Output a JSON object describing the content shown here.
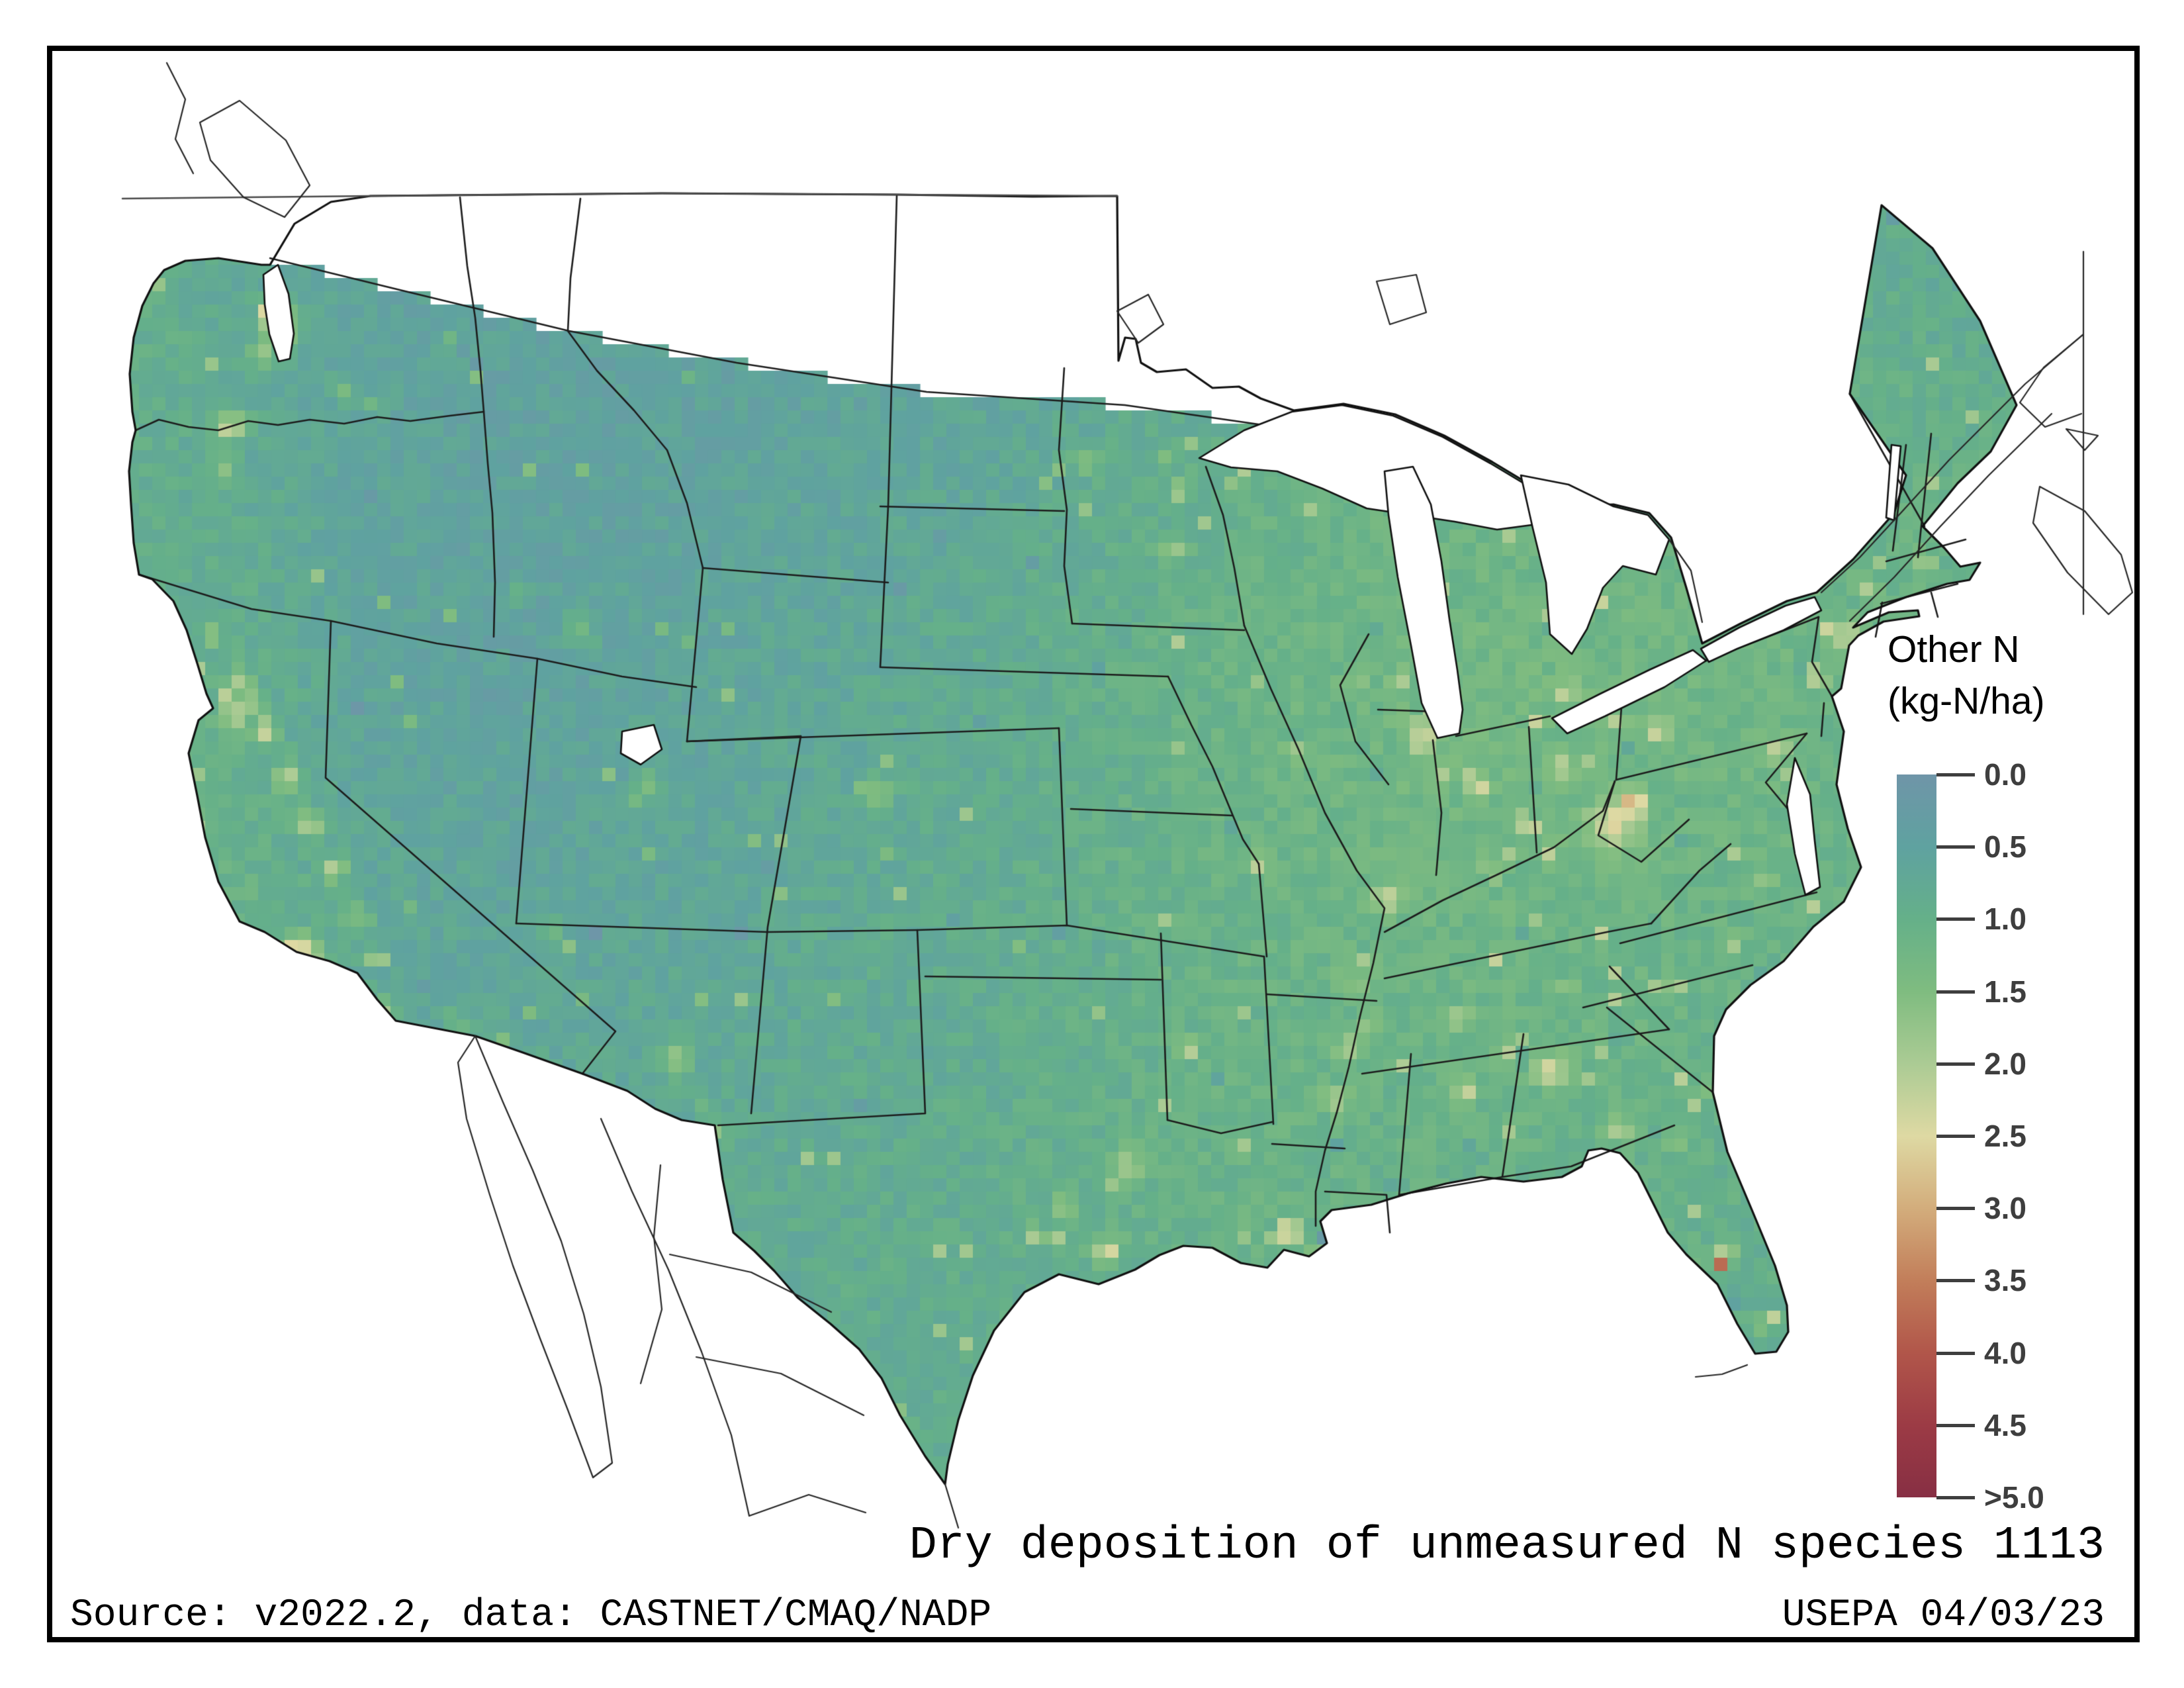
{
  "figure": {
    "title": "Dry deposition of unmeasured N species 1113",
    "source_line": "Source: v2022.2, data: CASTNET/CMAQ/NADP",
    "credit_line": "USEPA 04/03/23"
  },
  "legend": {
    "title_line1": "Other N",
    "title_line2": "(kg-N/ha)",
    "ticks": [
      {
        "value": 0.0,
        "label": "0.0"
      },
      {
        "value": 0.5,
        "label": "0.5"
      },
      {
        "value": 1.0,
        "label": "1.0"
      },
      {
        "value": 1.5,
        "label": "1.5"
      },
      {
        "value": 2.0,
        "label": "2.0"
      },
      {
        "value": 2.5,
        "label": "2.5"
      },
      {
        "value": 3.0,
        "label": "3.0"
      },
      {
        "value": 3.5,
        "label": "3.5"
      },
      {
        "value": 4.0,
        "label": "4.0"
      },
      {
        "value": 4.5,
        "label": "4.5"
      },
      {
        "value": 5.0,
        "label": ">5.0"
      }
    ]
  },
  "colors": {
    "background": "#ffffff",
    "frame": "#000000",
    "state_line": "#1c1c1c",
    "coast_line": "#101010",
    "neighbor_line": "#262626",
    "border_49th": "#4a4a4a",
    "tick_text": "#3e3e3e",
    "water": "#ffffff"
  },
  "chart_data": {
    "type": "heatmap",
    "variable": "Other N (dry deposition of unmeasured N species)",
    "units": "kg-N/ha",
    "scale_range": [
      0,
      5
    ],
    "scale_note": "values above 5.0 shown as >5.0",
    "colormap": [
      {
        "value": 0.0,
        "color": "#6f95a8"
      },
      {
        "value": 0.5,
        "color": "#5fa2a0"
      },
      {
        "value": 1.0,
        "color": "#65b089"
      },
      {
        "value": 1.5,
        "color": "#7fbc80"
      },
      {
        "value": 2.0,
        "color": "#abcb94"
      },
      {
        "value": 2.5,
        "color": "#ded9a3"
      },
      {
        "value": 3.0,
        "color": "#d3ad7c"
      },
      {
        "value": 3.5,
        "color": "#c27e5a"
      },
      {
        "value": 4.0,
        "color": "#b1564a"
      },
      {
        "value": 4.5,
        "color": "#9c3b45"
      },
      {
        "value": 5.0,
        "color": "#872f44"
      }
    ],
    "base_field": {
      "note": "coarse background deposition field kg-N/ha, 16 cols x 10 rows over map bbox",
      "x_range": [
        160,
        3060
      ],
      "y_range": [
        260,
        2250
      ],
      "values": [
        [
          0.8,
          0.7,
          0.55,
          0.5,
          0.5,
          0.5,
          0.55,
          0.6,
          0.65,
          0.7,
          0.8,
          0.85,
          0.85,
          0.9,
          0.8,
          0.7
        ],
        [
          1.0,
          0.8,
          0.55,
          0.5,
          0.5,
          0.5,
          0.55,
          0.6,
          0.7,
          0.8,
          0.9,
          1.0,
          1.0,
          1.0,
          0.9,
          0.8
        ],
        [
          0.9,
          0.8,
          0.6,
          0.5,
          0.5,
          0.55,
          0.6,
          0.7,
          0.85,
          1.0,
          1.1,
          1.1,
          1.1,
          1.1,
          1.05,
          0.95
        ],
        [
          1.0,
          0.9,
          0.6,
          0.5,
          0.55,
          0.6,
          0.7,
          0.8,
          0.95,
          1.1,
          1.2,
          1.25,
          1.2,
          1.2,
          1.15,
          1.0
        ],
        [
          1.1,
          1.0,
          0.6,
          0.55,
          0.6,
          0.65,
          0.75,
          0.85,
          1.0,
          1.15,
          1.25,
          1.3,
          1.25,
          1.2,
          1.1,
          1.0
        ],
        [
          1.2,
          1.1,
          0.7,
          0.6,
          0.6,
          0.7,
          0.8,
          0.85,
          1.0,
          1.1,
          1.2,
          1.2,
          1.15,
          1.1,
          1.05,
          0.95
        ],
        [
          1.0,
          1.0,
          0.8,
          0.7,
          0.7,
          0.75,
          0.8,
          0.85,
          1.0,
          1.1,
          1.1,
          1.15,
          1.1,
          1.05,
          0.95,
          0.9
        ],
        [
          0.9,
          0.9,
          0.8,
          0.8,
          0.8,
          0.8,
          0.85,
          0.9,
          1.0,
          1.1,
          1.05,
          1.05,
          1.0,
          0.95,
          0.9,
          0.85
        ],
        [
          0.8,
          0.8,
          0.8,
          0.8,
          0.8,
          0.8,
          0.85,
          0.9,
          0.95,
          1.0,
          0.95,
          0.95,
          0.95,
          0.9,
          0.85,
          0.8
        ],
        [
          0.8,
          0.8,
          0.8,
          0.8,
          0.8,
          0.85,
          0.9,
          0.9,
          0.9,
          0.9,
          0.9,
          0.85,
          0.85,
          0.85,
          0.8,
          0.8
        ]
      ]
    },
    "hotspots": [
      {
        "name": "seattle-core",
        "x": 415,
        "y": 468,
        "sigma": 10,
        "amp": 3.2
      },
      {
        "name": "seattle-area",
        "x": 420,
        "y": 492,
        "sigma": 22,
        "amp": 1.4
      },
      {
        "name": "tacoma",
        "x": 398,
        "y": 532,
        "sigma": 12,
        "amp": 1.0
      },
      {
        "name": "portland",
        "x": 352,
        "y": 640,
        "sigma": 15,
        "amp": 1.4
      },
      {
        "name": "portland-core",
        "x": 346,
        "y": 658,
        "sigma": 8,
        "amp": 1.4
      },
      {
        "name": "willamette",
        "x": 338,
        "y": 715,
        "sigma": 13,
        "amp": 0.9
      },
      {
        "name": "yakima",
        "x": 520,
        "y": 590,
        "sigma": 12,
        "amp": 0.9
      },
      {
        "name": "tri-cities",
        "x": 565,
        "y": 612,
        "sigma": 9,
        "amp": 0.8
      },
      {
        "name": "spokane",
        "x": 675,
        "y": 515,
        "sigma": 11,
        "amp": 0.8
      },
      {
        "name": "boise",
        "x": 790,
        "y": 900,
        "sigma": 10,
        "amp": 0.8
      },
      {
        "name": "snake-plain",
        "x": 870,
        "y": 960,
        "sigma": 18,
        "amp": 0.7
      },
      {
        "name": "redding",
        "x": 318,
        "y": 960,
        "sigma": 10,
        "amp": 0.8
      },
      {
        "name": "cv-1",
        "x": 365,
        "y": 1035,
        "sigma": 13,
        "amp": 1.1
      },
      {
        "name": "sacramento",
        "x": 380,
        "y": 1062,
        "sigma": 10,
        "amp": 1.2
      },
      {
        "name": "sf-bay",
        "x": 350,
        "y": 1078,
        "sigma": 14,
        "amp": 1.3
      },
      {
        "name": "cv-2",
        "x": 400,
        "y": 1105,
        "sigma": 14,
        "amp": 1.3
      },
      {
        "name": "cv-3",
        "x": 435,
        "y": 1175,
        "sigma": 15,
        "amp": 1.4
      },
      {
        "name": "cv-4",
        "x": 470,
        "y": 1245,
        "sigma": 15,
        "amp": 1.4
      },
      {
        "name": "cv-5",
        "x": 505,
        "y": 1315,
        "sigma": 14,
        "amp": 1.3
      },
      {
        "name": "cv-6",
        "x": 540,
        "y": 1385,
        "sigma": 13,
        "amp": 1.2
      },
      {
        "name": "la-basin",
        "x": 455,
        "y": 1445,
        "sigma": 22,
        "amp": 1.5
      },
      {
        "name": "la-core",
        "x": 448,
        "y": 1432,
        "sigma": 10,
        "amp": 1.1
      },
      {
        "name": "san-diego",
        "x": 585,
        "y": 1528,
        "sigma": 11,
        "amp": 1.2
      },
      {
        "name": "imperial",
        "x": 690,
        "y": 1545,
        "sigma": 9,
        "amp": 1.1
      },
      {
        "name": "las-vegas",
        "x": 835,
        "y": 1400,
        "sigma": 10,
        "amp": 0.9
      },
      {
        "name": "salt-lake",
        "x": 980,
        "y": 1180,
        "sigma": 12,
        "amp": 1.1
      },
      {
        "name": "phoenix",
        "x": 1020,
        "y": 1600,
        "sigma": 15,
        "amp": 1.2
      },
      {
        "name": "tucson",
        "x": 1070,
        "y": 1680,
        "sigma": 9,
        "amp": 0.9
      },
      {
        "name": "albuquerque",
        "x": 1262,
        "y": 1510,
        "sigma": 9,
        "amp": 0.9
      },
      {
        "name": "el-paso",
        "x": 1085,
        "y": 1712,
        "sigma": 9,
        "amp": 1.0
      },
      {
        "name": "denver",
        "x": 1330,
        "y": 1200,
        "sigma": 13,
        "amp": 1.1
      },
      {
        "name": "front-range",
        "x": 1338,
        "y": 1155,
        "sigma": 9,
        "amp": 0.8
      },
      {
        "name": "dfw",
        "x": 1705,
        "y": 1760,
        "sigma": 15,
        "amp": 1.3
      },
      {
        "name": "austin",
        "x": 1608,
        "y": 1822,
        "sigma": 10,
        "amp": 1.0
      },
      {
        "name": "san-antonio",
        "x": 1568,
        "y": 1868,
        "sigma": 11,
        "amp": 1.1
      },
      {
        "name": "houston",
        "x": 1672,
        "y": 1890,
        "sigma": 15,
        "amp": 1.4
      },
      {
        "name": "okc",
        "x": 1798,
        "y": 1585,
        "sigma": 11,
        "amp": 1.0
      },
      {
        "name": "tulsa",
        "x": 1872,
        "y": 1530,
        "sigma": 9,
        "amp": 0.9
      },
      {
        "name": "wichita",
        "x": 1758,
        "y": 1392,
        "sigma": 9,
        "amp": 0.9
      },
      {
        "name": "kansas-city",
        "x": 1905,
        "y": 1305,
        "sigma": 12,
        "amp": 1.1
      },
      {
        "name": "omaha",
        "x": 1788,
        "y": 1128,
        "sigma": 9,
        "amp": 0.9
      },
      {
        "name": "des-moines",
        "x": 1952,
        "y": 1135,
        "sigma": 9,
        "amp": 0.9
      },
      {
        "name": "minneapolis",
        "x": 1772,
        "y": 830,
        "sigma": 13,
        "amp": 1.2
      },
      {
        "name": "red-river-valley",
        "x": 1640,
        "y": 700,
        "sigma": 14,
        "amp": 0.7
      },
      {
        "name": "st-louis",
        "x": 2095,
        "y": 1358,
        "sigma": 13,
        "amp": 1.1
      },
      {
        "name": "chicago",
        "x": 2150,
        "y": 1112,
        "sigma": 16,
        "amp": 1.3
      },
      {
        "name": "milwaukee",
        "x": 2115,
        "y": 1022,
        "sigma": 9,
        "amp": 1.0
      },
      {
        "name": "madison",
        "x": 2052,
        "y": 1032,
        "sigma": 8,
        "amp": 0.8
      },
      {
        "name": "indianapolis",
        "x": 2225,
        "y": 1178,
        "sigma": 11,
        "amp": 1.1
      },
      {
        "name": "cincinnati",
        "x": 2302,
        "y": 1242,
        "sigma": 10,
        "amp": 1.2
      },
      {
        "name": "louisville",
        "x": 2252,
        "y": 1318,
        "sigma": 9,
        "amp": 1.1
      },
      {
        "name": "nashville",
        "x": 2205,
        "y": 1540,
        "sigma": 11,
        "amp": 1.1
      },
      {
        "name": "knoxville",
        "x": 2372,
        "y": 1495,
        "sigma": 9,
        "amp": 1.0
      },
      {
        "name": "memphis",
        "x": 2065,
        "y": 1545,
        "sigma": 9,
        "amp": 1.0
      },
      {
        "name": "ms-valley-ag-1",
        "x": 2048,
        "y": 1480,
        "sigma": 14,
        "amp": 0.7
      },
      {
        "name": "ms-valley-ag-2",
        "x": 2035,
        "y": 1580,
        "sigma": 14,
        "amp": 0.8
      },
      {
        "name": "ms-valley-ag-3",
        "x": 2018,
        "y": 1660,
        "sigma": 14,
        "amp": 0.8
      },
      {
        "name": "detroit",
        "x": 2365,
        "y": 1048,
        "sigma": 12,
        "amp": 1.1
      },
      {
        "name": "toledo",
        "x": 2325,
        "y": 1090,
        "sigma": 9,
        "amp": 1.0
      },
      {
        "name": "cleveland",
        "x": 2445,
        "y": 1088,
        "sigma": 10,
        "amp": 1.1
      },
      {
        "name": "columbus",
        "x": 2358,
        "y": 1158,
        "sigma": 10,
        "amp": 1.1
      },
      {
        "name": "pittsburgh",
        "x": 2502,
        "y": 1105,
        "sigma": 12,
        "amp": 1.3
      },
      {
        "name": "wv-appalachia",
        "x": 2435,
        "y": 1250,
        "sigma": 26,
        "amp": 1.3
      },
      {
        "name": "wv-core",
        "x": 2468,
        "y": 1215,
        "sigma": 14,
        "amp": 1.5
      },
      {
        "name": "atlanta",
        "x": 2345,
        "y": 1618,
        "sigma": 16,
        "amp": 1.4
      },
      {
        "name": "birmingham",
        "x": 2215,
        "y": 1650,
        "sigma": 11,
        "amp": 1.1
      },
      {
        "name": "chattanooga",
        "x": 2300,
        "y": 1572,
        "sigma": 8,
        "amp": 0.9
      },
      {
        "name": "charlotte",
        "x": 2530,
        "y": 1488,
        "sigma": 11,
        "amp": 1.1
      },
      {
        "name": "raleigh",
        "x": 2620,
        "y": 1422,
        "sigma": 9,
        "amp": 1.0
      },
      {
        "name": "richmond",
        "x": 2668,
        "y": 1322,
        "sigma": 9,
        "amp": 1.0
      },
      {
        "name": "norfolk",
        "x": 2738,
        "y": 1372,
        "sigma": 8,
        "amp": 0.9
      },
      {
        "name": "dc-baltimore",
        "x": 2682,
        "y": 1135,
        "sigma": 13,
        "amp": 1.3
      },
      {
        "name": "philadelphia",
        "x": 2745,
        "y": 1022,
        "sigma": 11,
        "amp": 1.3
      },
      {
        "name": "nyc-nj",
        "x": 2792,
        "y": 958,
        "sigma": 13,
        "amp": 1.5
      },
      {
        "name": "albany",
        "x": 2818,
        "y": 888,
        "sigma": 8,
        "amp": 0.9
      },
      {
        "name": "boston",
        "x": 2908,
        "y": 852,
        "sigma": 10,
        "amp": 1.1
      },
      {
        "name": "buffalo",
        "x": 2582,
        "y": 898,
        "sigma": 9,
        "amp": 1.0
      },
      {
        "name": "savannah",
        "x": 2570,
        "y": 1652,
        "sigma": 8,
        "amp": 0.9
      },
      {
        "name": "se-georgia",
        "x": 2445,
        "y": 1705,
        "sigma": 15,
        "amp": 1.0
      },
      {
        "name": "jacksonville",
        "x": 2535,
        "y": 1725,
        "sigma": 9,
        "amp": 1.0
      },
      {
        "name": "orlando",
        "x": 2608,
        "y": 1895,
        "sigma": 11,
        "amp": 1.2
      },
      {
        "name": "tampa",
        "x": 2545,
        "y": 1915,
        "sigma": 11,
        "amp": 1.2
      },
      {
        "name": "florida-red-cell",
        "x": 2595,
        "y": 1908,
        "sigma": 7,
        "amp": 3.2
      },
      {
        "name": "miami",
        "x": 2668,
        "y": 2000,
        "sigma": 10,
        "amp": 1.1
      },
      {
        "name": "lake-charles",
        "x": 1875,
        "y": 1868,
        "sigma": 8,
        "amp": 1.1
      },
      {
        "name": "baton-rouge",
        "x": 1952,
        "y": 1862,
        "sigma": 12,
        "amp": 1.8
      },
      {
        "name": "baton-rouge-red-cell",
        "x": 1948,
        "y": 1858,
        "sigma": 6,
        "amp": 3.4
      },
      {
        "name": "new-orleans",
        "x": 1992,
        "y": 1888,
        "sigma": 9,
        "amp": 1.1
      }
    ],
    "cold_spots": [
      {
        "name": "gulf-anomaly-la",
        "x": 2002,
        "y": 1872,
        "sigma": 12,
        "amp": -0.85
      },
      {
        "name": "fl-anomaly",
        "x": 2622,
        "y": 1960,
        "sigma": 9,
        "amp": -0.5
      }
    ]
  }
}
